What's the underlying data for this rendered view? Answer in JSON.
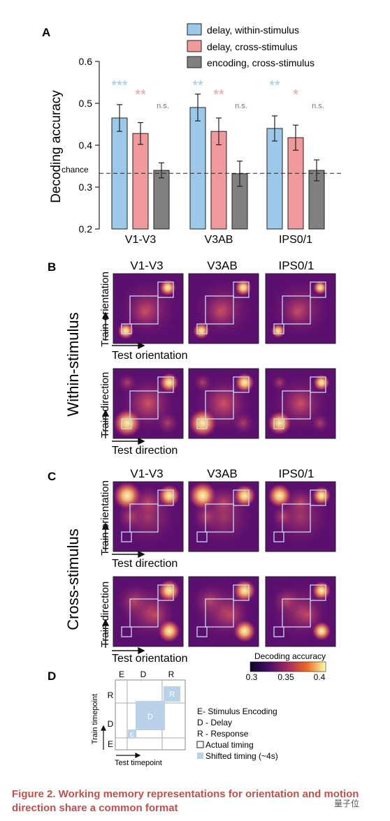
{
  "panel_labels": {
    "a": "A",
    "b": "B",
    "c": "C",
    "d": "D"
  },
  "legend": {
    "items": [
      {
        "label": "delay, within-stimulus",
        "color": "#9cc8ea"
      },
      {
        "label": "delay, cross-stimulus",
        "color": "#f19a9c"
      },
      {
        "label": "encoding, cross-stimulus",
        "color": "#808080"
      }
    ]
  },
  "chart_data": {
    "type": "bar",
    "ylabel": "Decoding accuracy",
    "ylim": [
      0.2,
      0.6
    ],
    "yticks": [
      "0.2",
      "0.3",
      "0.4",
      "0.5",
      "0.6"
    ],
    "categories": [
      "V1-V3",
      "V3AB",
      "IPS0/1"
    ],
    "chance_label": "chance",
    "chance_value": 0.333,
    "series": [
      {
        "name": "delay, within-stimulus",
        "color": "#9cc8ea",
        "values": [
          0.465,
          0.49,
          0.44
        ],
        "errors": [
          0.032,
          0.032,
          0.03
        ],
        "sig": [
          "***",
          "**",
          "**"
        ]
      },
      {
        "name": "delay, cross-stimulus",
        "color": "#f19a9c",
        "values": [
          0.428,
          0.433,
          0.418
        ],
        "errors": [
          0.026,
          0.032,
          0.03
        ],
        "sig": [
          "**",
          "**",
          "*"
        ]
      },
      {
        "name": "encoding, cross-stimulus",
        "color": "#808080",
        "values": [
          0.34,
          0.332,
          0.34
        ],
        "errors": [
          0.018,
          0.03,
          0.025
        ],
        "sig": [
          "n.s.",
          "n.s.",
          "n.s."
        ]
      }
    ]
  },
  "panel_b": {
    "side_label": "Within-stimulus",
    "columns": [
      "V1-V3",
      "V3AB",
      "IPS0/1"
    ],
    "rows": [
      {
        "y_label": "Train orientation",
        "x_label": "Test orientation"
      },
      {
        "y_label": "Train direction",
        "x_label": "Test direction"
      }
    ]
  },
  "panel_c": {
    "side_label": "Cross-stimulus",
    "columns": [
      "V1-V3",
      "V3AB",
      "IPS0/1"
    ],
    "rows": [
      {
        "y_label": "Train orientation",
        "x_label": "Test direction"
      },
      {
        "y_label": "Train direction",
        "x_label": "Test orientation"
      }
    ]
  },
  "colorbar": {
    "title": "Decoding accuracy",
    "ticks": [
      "0.3",
      "0.35",
      "0.4"
    ]
  },
  "panel_d": {
    "top_labels": [
      "E",
      "D",
      "R"
    ],
    "side_labels": [
      "R",
      "D",
      "E"
    ],
    "box_labels": [
      "R",
      "D",
      "E"
    ],
    "y_label": "Train timepoint",
    "x_label": "Test timepoint",
    "legend": [
      "E- Stimulus Encoding",
      "D - Delay",
      "R - Response"
    ],
    "actual_timing": "Actual timing",
    "shifted_timing": "Shifted timing (~4s)"
  },
  "caption": "Figure 2. Working memory representations for orientation and motion direction share a common format",
  "watermark": "量子位"
}
